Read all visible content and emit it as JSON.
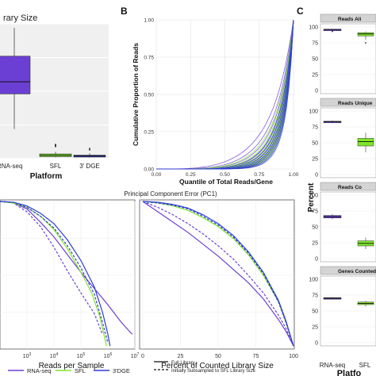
{
  "panel_labels": {
    "b": "B",
    "c": "C"
  },
  "chart_data": [
    {
      "id": "A",
      "type": "box",
      "title": "rary Size",
      "xlabel": "Platform",
      "ylabel": "",
      "categories": [
        "RNA-seq",
        "SFL",
        "3' DGE"
      ],
      "category_labels": [
        "RNA-seq",
        "SFL",
        "3' DGE"
      ],
      "colors": [
        "#6b3fd4",
        "#7ee52a",
        "#2f3bd6"
      ],
      "boxes": [
        {
          "whisker_low": 0.22,
          "q1": 0.48,
          "median": 0.57,
          "q3": 0.76,
          "whisker_high": 0.97
        },
        {
          "whisker_low": 0.01,
          "q1": 0.015,
          "median": 0.025,
          "q3": 0.035,
          "whisker_high": 0.05,
          "outliers": [
            0.09,
            0.095,
            0.1,
            0.105
          ]
        },
        {
          "whisker_low": 0.008,
          "q1": 0.012,
          "median": 0.02,
          "q3": 0.026,
          "whisker_high": 0.04,
          "outliers": [
            0.065,
            0.075
          ]
        }
      ],
      "ylim": [
        0,
        1
      ]
    },
    {
      "id": "B",
      "type": "line",
      "title": "",
      "xlabel": "Quantile of Total Reads/Gene",
      "ylabel": "Cumulative Proportion of Reads",
      "x_ticks": [
        "0.00",
        "0.25",
        "0.50",
        "0.75",
        "1.00"
      ],
      "y_ticks": [
        "0.00",
        "0.25",
        "0.50",
        "0.75",
        "1.00"
      ],
      "xlim": [
        0,
        1
      ],
      "ylim": [
        0,
        1
      ],
      "grid": true,
      "series_colors": [
        "#6b3fd4",
        "#7ee52a",
        "#2f3bd6"
      ],
      "series_count_each": 8,
      "curve_shape": {
        "concentration_min": 1.6,
        "concentration_max": 4.2
      }
    },
    {
      "id": "C",
      "type": "box",
      "title": "",
      "xlabel": "Platfo",
      "ylabel": "Percent",
      "category_labels": [
        "RNA-seq",
        "SFL"
      ],
      "colors": [
        "#6b3fd4",
        "#7ee52a",
        "#2f3bd6"
      ],
      "facets": [
        {
          "strip": "Reads Ali",
          "ylim": [
            0,
            100
          ],
          "y_ticks": [
            "0",
            "25",
            "50",
            "75",
            "100"
          ],
          "boxes": [
            {
              "median": 96,
              "q1": 95.5,
              "q3": 96.5,
              "whisker_low": 95,
              "whisker_high": 97,
              "outliers": [
                93
              ]
            },
            {
              "median": 89,
              "q1": 86,
              "q3": 91,
              "whisker_low": 80,
              "whisker_high": 93,
              "outliers": [
                75
              ]
            }
          ]
        },
        {
          "strip": "Reads Unique",
          "ylim": [
            0,
            100
          ],
          "y_ticks": [
            "0",
            "25",
            "50",
            "75",
            "100"
          ],
          "boxes": [
            {
              "median": 83,
              "q1": 82,
              "q3": 84,
              "whisker_low": 81,
              "whisker_high": 85,
              "outliers": []
            },
            {
              "median": 52,
              "q1": 45,
              "q3": 57,
              "whisker_low": 35,
              "whisker_high": 66,
              "outliers": []
            }
          ]
        },
        {
          "strip": "Reads Co",
          "ylim": [
            0,
            100
          ],
          "y_ticks": [
            "0",
            "25",
            "50",
            "75",
            "100"
          ],
          "boxes": [
            {
              "median": 66,
              "q1": 64,
              "q3": 68,
              "whisker_low": 62,
              "whisker_high": 70,
              "outliers": []
            },
            {
              "median": 24,
              "q1": 20,
              "q3": 28,
              "whisker_low": 15,
              "whisker_high": 33,
              "outliers": []
            }
          ]
        },
        {
          "strip": "Genes Counted [",
          "ylim": [
            0,
            100
          ],
          "y_ticks": [
            "0",
            "25",
            "50",
            "75",
            "100"
          ],
          "boxes": [
            {
              "median": 70,
              "q1": 69,
              "q3": 71,
              "whisker_low": 68,
              "whisker_high": 72,
              "outliers": []
            },
            {
              "median": 62,
              "q1": 60,
              "q3": 64,
              "whisker_low": 57,
              "whisker_high": 66,
              "outliers": []
            }
          ]
        }
      ]
    },
    {
      "id": "D",
      "type": "line",
      "title": "Principal Component Error (PC1)",
      "xlabel": "Reads per Sample",
      "x_scale": "log",
      "x_ticks": [
        "10^3",
        "10^4",
        "10^5",
        "10^6",
        "10^7"
      ],
      "xlim": [
        2,
        7
      ],
      "ylim": [
        0,
        1
      ],
      "series": [
        {
          "name": "RNA-seq",
          "color": "#6b3fd4",
          "dashed": false,
          "x": [
            2.0,
            2.5,
            3.0,
            3.5,
            4.0,
            4.5,
            5.0,
            5.5,
            6.0,
            6.5,
            6.9
          ],
          "y": [
            1.0,
            0.99,
            0.95,
            0.86,
            0.76,
            0.64,
            0.52,
            0.41,
            0.3,
            0.18,
            0.1
          ]
        },
        {
          "name": "RNA-seq subsampled",
          "color": "#6b3fd4",
          "dashed": true,
          "x": [
            2.0,
            2.5,
            3.0,
            3.5,
            4.0,
            4.5,
            5.0,
            5.5,
            5.8
          ],
          "y": [
            1.0,
            0.99,
            0.93,
            0.83,
            0.69,
            0.53,
            0.38,
            0.24,
            0.1
          ]
        },
        {
          "name": "SFL",
          "color": "#7ee52a",
          "dashed": false,
          "x": [
            2.0,
            2.5,
            3.0,
            3.5,
            4.0,
            4.5,
            5.0,
            5.4,
            5.7,
            5.85,
            5.95
          ],
          "y": [
            1.0,
            0.99,
            0.96,
            0.9,
            0.81,
            0.68,
            0.52,
            0.38,
            0.22,
            0.1,
            0.02
          ]
        },
        {
          "name": "3'DGE",
          "color": "#2f3bd6",
          "dashed": false,
          "x": [
            2.0,
            2.5,
            3.0,
            3.5,
            4.0,
            4.5,
            5.0,
            5.5,
            5.8,
            6.0,
            6.08
          ],
          "y": [
            1.0,
            0.995,
            0.97,
            0.92,
            0.85,
            0.74,
            0.6,
            0.42,
            0.25,
            0.1,
            0.02
          ]
        },
        {
          "name": "3'DGE subsampled",
          "color": "#2f3bd6",
          "dashed": true,
          "x": [
            2.0,
            2.5,
            3.0,
            3.5,
            4.0,
            4.5,
            5.0,
            5.5,
            5.8,
            6.0
          ],
          "y": [
            1.0,
            0.995,
            0.96,
            0.9,
            0.82,
            0.7,
            0.55,
            0.37,
            0.18,
            0.04
          ]
        }
      ],
      "legend": {
        "position": "bottom",
        "platform_items": [
          {
            "label": "RNA-seq",
            "color": "#6b3fd4"
          },
          {
            "label": "SFL",
            "color": "#7ee52a"
          },
          {
            "label": "3'DGE",
            "color": "#2f3bd6"
          }
        ],
        "style_items": [
          {
            "label": "Full Library",
            "dashed": false
          },
          {
            "label": "Initially Subsampled to SFL Library Size",
            "dashed": true
          }
        ]
      }
    },
    {
      "id": "E",
      "type": "line",
      "title": "",
      "xlabel": "Percent of Counted Library Size",
      "x_ticks": [
        "0",
        "25",
        "50",
        "75",
        "100"
      ],
      "xlim": [
        0,
        100
      ],
      "ylim": [
        0,
        1
      ],
      "series": [
        {
          "name": "RNA-seq",
          "color": "#6b3fd4",
          "dashed": false,
          "x": [
            0,
            10,
            20,
            30,
            40,
            50,
            60,
            70,
            80,
            90,
            95,
            100
          ],
          "y": [
            1.0,
            0.93,
            0.86,
            0.79,
            0.71,
            0.63,
            0.54,
            0.45,
            0.34,
            0.2,
            0.12,
            0.02
          ]
        },
        {
          "name": "RNA-seq subsampled",
          "color": "#6b3fd4",
          "dashed": true,
          "x": [
            0,
            10,
            20,
            30,
            40,
            50,
            60,
            70,
            80,
            90,
            95,
            100
          ],
          "y": [
            1.0,
            0.96,
            0.91,
            0.85,
            0.78,
            0.7,
            0.61,
            0.5,
            0.38,
            0.23,
            0.14,
            0.02
          ]
        },
        {
          "name": "SFL",
          "color": "#7ee52a",
          "dashed": false,
          "x": [
            0,
            10,
            20,
            30,
            40,
            50,
            60,
            70,
            80,
            90,
            95,
            100
          ],
          "y": [
            1.0,
            0.99,
            0.97,
            0.94,
            0.89,
            0.83,
            0.75,
            0.64,
            0.5,
            0.32,
            0.18,
            0.02
          ]
        },
        {
          "name": "3'DGE",
          "color": "#2f3bd6",
          "dashed": false,
          "x": [
            0,
            10,
            20,
            30,
            40,
            50,
            60,
            70,
            80,
            90,
            95,
            100
          ],
          "y": [
            1.0,
            0.995,
            0.98,
            0.955,
            0.91,
            0.85,
            0.77,
            0.66,
            0.52,
            0.33,
            0.19,
            0.02
          ]
        },
        {
          "name": "3'DGE subsampled",
          "color": "#2f3bd6",
          "dashed": true,
          "x": [
            0,
            10,
            20,
            30,
            40,
            50,
            60,
            70,
            80,
            90,
            95,
            100
          ],
          "y": [
            1.0,
            0.99,
            0.975,
            0.95,
            0.9,
            0.84,
            0.76,
            0.65,
            0.51,
            0.32,
            0.18,
            0.02
          ]
        }
      ]
    }
  ]
}
